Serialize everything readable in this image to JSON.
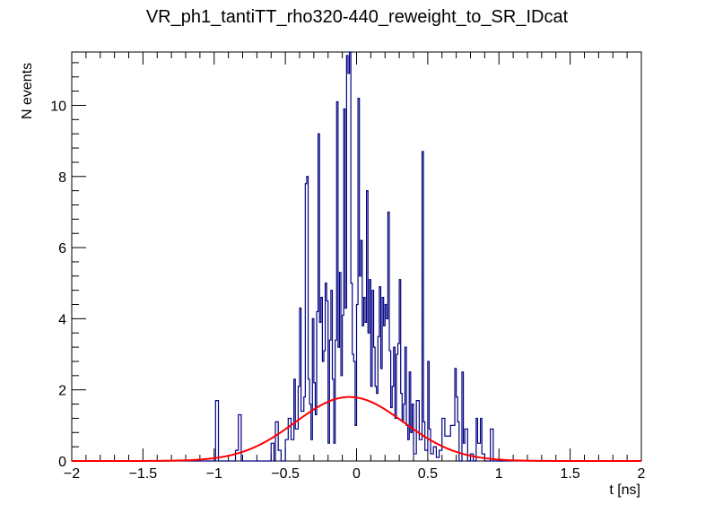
{
  "chart_data": {
    "type": "histogram",
    "title": "VR_ph1_tantiTT_rho320-440_reweight_to_SR_IDcat",
    "xlabel": "t [ns]",
    "ylabel": "N events",
    "xlim": [
      -2,
      2
    ],
    "ylim": [
      0,
      11.5
    ],
    "xticks": [
      "−2",
      "−1.5",
      "−1",
      "−0.5",
      "0",
      "0.5",
      "1",
      "1.5",
      "2"
    ],
    "yticks": [
      "0",
      "2",
      "4",
      "6",
      "8",
      "10"
    ],
    "grid": false,
    "series": [
      {
        "kind": "step",
        "color": "#000080",
        "bins": [
          [
            -0.99,
            1.7
          ],
          [
            -0.97,
            0
          ],
          [
            -0.85,
            0.3
          ],
          [
            -0.83,
            1.3
          ],
          [
            -0.81,
            0
          ],
          [
            -0.6,
            0.5
          ],
          [
            -0.58,
            0
          ],
          [
            -0.57,
            1.1
          ],
          [
            -0.55,
            0.3
          ],
          [
            -0.53,
            0
          ],
          [
            -0.5,
            0.6
          ],
          [
            -0.48,
            1.2
          ],
          [
            -0.46,
            0.6
          ],
          [
            -0.44,
            2.3
          ],
          [
            -0.43,
            0.9
          ],
          [
            -0.41,
            2.1
          ],
          [
            -0.4,
            4.3
          ],
          [
            -0.39,
            1.4
          ],
          [
            -0.37,
            1.8
          ],
          [
            -0.36,
            7.8
          ],
          [
            -0.35,
            8.0
          ],
          [
            -0.34,
            2.3
          ],
          [
            -0.33,
            1.6
          ],
          [
            -0.32,
            0.6
          ],
          [
            -0.31,
            4.0
          ],
          [
            -0.3,
            2.2
          ],
          [
            -0.29,
            1.3
          ],
          [
            -0.28,
            4.2
          ],
          [
            -0.27,
            9.2
          ],
          [
            -0.26,
            3.9
          ],
          [
            -0.25,
            4.6
          ],
          [
            -0.24,
            2.8
          ],
          [
            -0.23,
            3.1
          ],
          [
            -0.22,
            5.0
          ],
          [
            -0.21,
            4.5
          ],
          [
            -0.2,
            0.5
          ],
          [
            -0.19,
            3.4
          ],
          [
            -0.18,
            4.8
          ],
          [
            -0.17,
            2.3
          ],
          [
            -0.16,
            0.5
          ],
          [
            -0.15,
            3.4
          ],
          [
            -0.14,
            10.1
          ],
          [
            -0.13,
            3.2
          ],
          [
            -0.12,
            5.3
          ],
          [
            -0.11,
            2.4
          ],
          [
            -0.1,
            4.1
          ],
          [
            -0.09,
            9.9
          ],
          [
            -0.08,
            4.3
          ],
          [
            -0.07,
            11.4
          ],
          [
            -0.06,
            10.9
          ],
          [
            -0.05,
            11.5
          ],
          [
            -0.04,
            5.0
          ],
          [
            -0.03,
            3.0
          ],
          [
            -0.02,
            2.8
          ],
          [
            -0.01,
            1.0
          ],
          [
            0.0,
            4.4
          ],
          [
            0.01,
            10.2
          ],
          [
            0.02,
            5.2
          ],
          [
            0.03,
            6.2
          ],
          [
            0.04,
            3.8
          ],
          [
            0.05,
            4.6
          ],
          [
            0.06,
            3.9
          ],
          [
            0.07,
            7.6
          ],
          [
            0.08,
            3.6
          ],
          [
            0.09,
            5.1
          ],
          [
            0.1,
            2.1
          ],
          [
            0.11,
            4.8
          ],
          [
            0.12,
            3.2
          ],
          [
            0.13,
            2.1
          ],
          [
            0.14,
            1.9
          ],
          [
            0.15,
            3.5
          ],
          [
            0.16,
            4.9
          ],
          [
            0.17,
            2.6
          ],
          [
            0.18,
            4.6
          ],
          [
            0.19,
            3.8
          ],
          [
            0.2,
            4.4
          ],
          [
            0.21,
            4.0
          ],
          [
            0.22,
            7.0
          ],
          [
            0.23,
            3.1
          ],
          [
            0.24,
            1.5
          ],
          [
            0.25,
            2.1
          ],
          [
            0.26,
            3.2
          ],
          [
            0.27,
            1.2
          ],
          [
            0.28,
            3.0
          ],
          [
            0.29,
            3.3
          ],
          [
            0.3,
            5.1
          ],
          [
            0.31,
            1.9
          ],
          [
            0.32,
            1.1
          ],
          [
            0.33,
            1.6
          ],
          [
            0.34,
            3.2
          ],
          [
            0.35,
            1.0
          ],
          [
            0.36,
            0.6
          ],
          [
            0.37,
            2.5
          ],
          [
            0.38,
            0.8
          ],
          [
            0.39,
            1.6
          ],
          [
            0.4,
            0.2
          ],
          [
            0.42,
            1.7
          ],
          [
            0.44,
            0.6
          ],
          [
            0.46,
            8.7
          ],
          [
            0.47,
            1.1
          ],
          [
            0.48,
            0.3
          ],
          [
            0.5,
            2.8
          ],
          [
            0.51,
            0.9
          ],
          [
            0.52,
            0.2
          ],
          [
            0.54,
            0.4
          ],
          [
            0.56,
            0.1
          ],
          [
            0.58,
            0.3
          ],
          [
            0.6,
            1.2
          ],
          [
            0.62,
            0.7
          ],
          [
            0.66,
            1.0
          ],
          [
            0.69,
            2.6
          ],
          [
            0.7,
            1.8
          ],
          [
            0.71,
            1.1
          ],
          [
            0.72,
            0
          ],
          [
            0.74,
            2.5
          ],
          [
            0.75,
            0.5
          ],
          [
            0.76,
            0.9
          ],
          [
            0.78,
            0
          ],
          [
            0.8,
            0.2
          ],
          [
            0.82,
            0
          ],
          [
            0.84,
            1.2
          ],
          [
            0.85,
            0.5
          ],
          [
            0.87,
            1.2
          ],
          [
            0.88,
            0.2
          ],
          [
            0.9,
            0
          ],
          [
            0.94,
            0.9
          ],
          [
            0.96,
            0
          ]
        ],
        "bin_width": 0.01
      },
      {
        "kind": "curve",
        "color": "#ff0000",
        "function": "gaussian",
        "amplitude": 1.8,
        "mean": -0.05,
        "sigma": 0.38
      }
    ]
  }
}
